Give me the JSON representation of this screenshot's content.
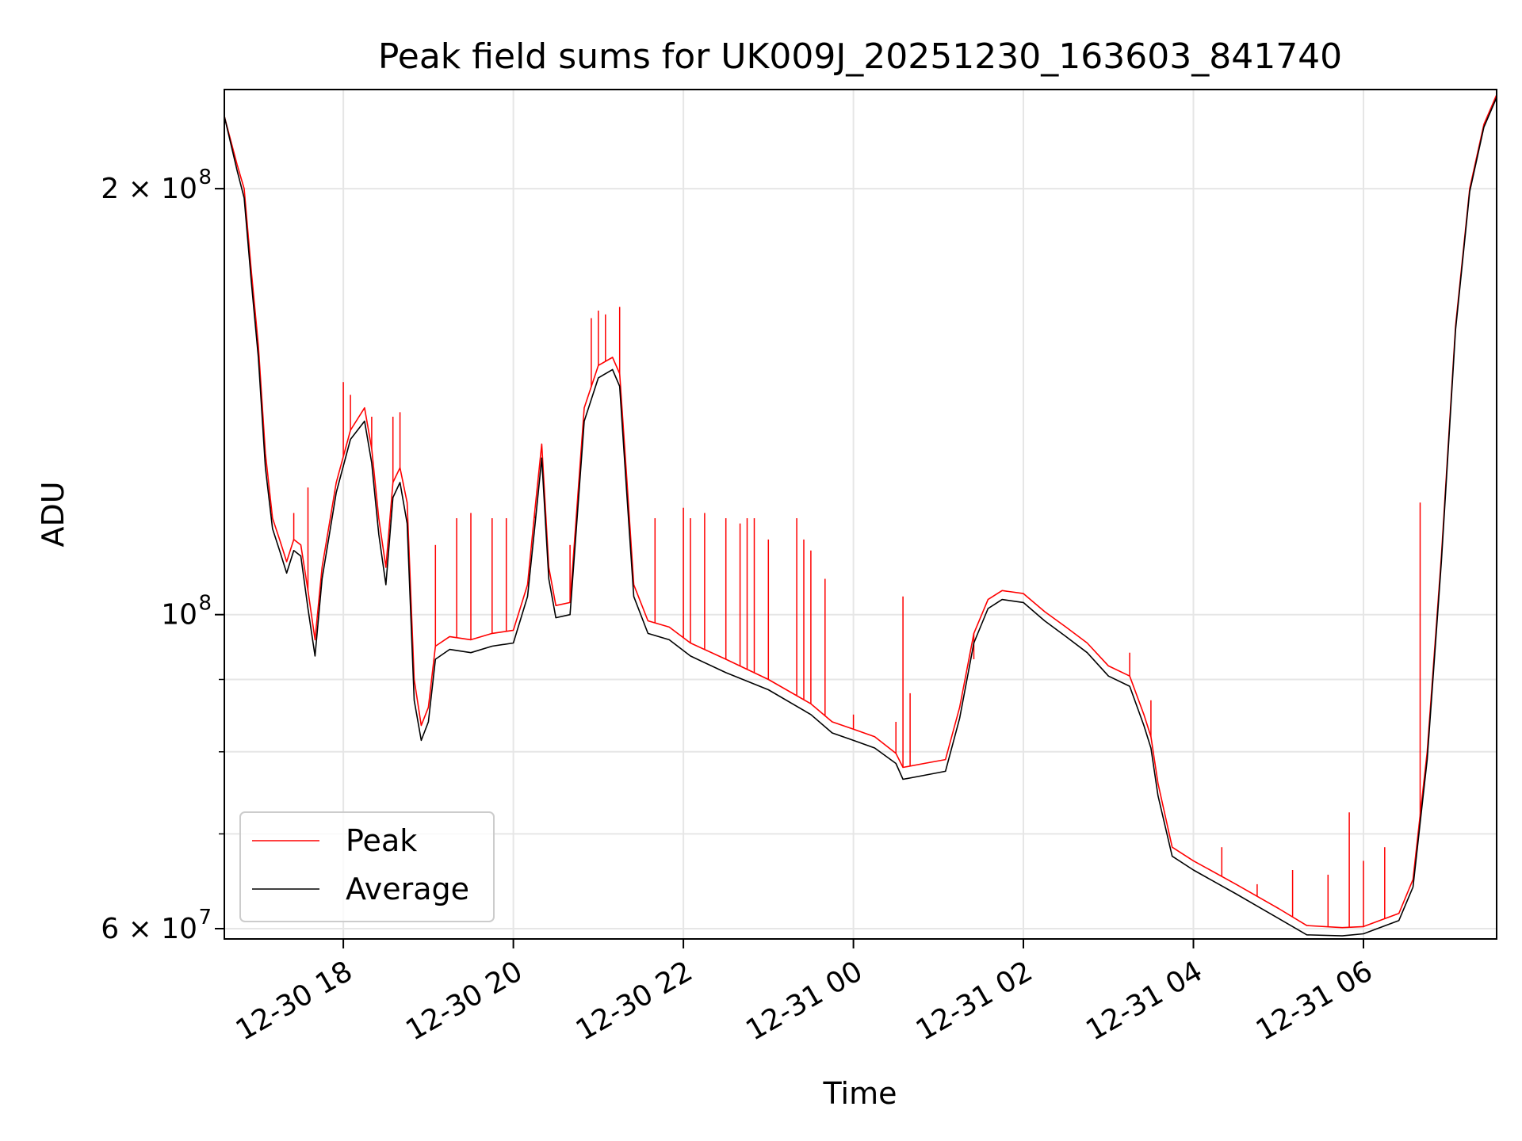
{
  "chart_data": {
    "type": "line",
    "title": "Peak field sums for UK009J_20251230_163603_841740",
    "xlabel": "Time",
    "ylabel": "ADU",
    "yscale": "log",
    "grid": true,
    "legend_placement": "lower-left",
    "x_range": [
      "12-30 16:36",
      "12-31 07:34"
    ],
    "ylim": [
      59000000,
      235000000
    ],
    "x_ticks": [
      "12-30 18",
      "12-30 20",
      "12-30 22",
      "12-31 00",
      "12-31 02",
      "12-31 04",
      "12-31 06"
    ],
    "y_ticks": [
      {
        "value": 60000000,
        "base": "6 × 10",
        "exp": "7"
      },
      {
        "value": 100000000,
        "base": "10",
        "exp": "8"
      },
      {
        "value": 200000000,
        "base": "2 × 10",
        "exp": "8"
      }
    ],
    "y_minor_ticks": [
      70000000,
      80000000,
      90000000
    ],
    "series": [
      {
        "name": "Peak",
        "color": "#ff0000",
        "points": [
          [
            "12-30 16:36",
            225000000
          ],
          [
            "12-30 16:45",
            208000000
          ],
          [
            "12-30 16:50",
            200000000
          ],
          [
            "12-30 16:55",
            175000000
          ],
          [
            "12-30 17:00",
            155000000
          ],
          [
            "12-30 17:05",
            130000000
          ],
          [
            "12-30 17:10",
            117000000
          ],
          [
            "12-30 17:15",
            113000000
          ],
          [
            "12-30 17:20",
            109000000
          ],
          [
            "12-30 17:25",
            113000000
          ],
          [
            "12-30 17:30",
            112000000
          ],
          [
            "12-30 17:35",
            104000000
          ],
          [
            "12-30 17:40",
            96000000
          ],
          [
            "12-30 17:45",
            108000000
          ],
          [
            "12-30 17:55",
            124000000
          ],
          [
            "12-30 18:05",
            135000000
          ],
          [
            "12-30 18:15",
            140000000
          ],
          [
            "12-30 18:20",
            131000000
          ],
          [
            "12-30 18:25",
            117000000
          ],
          [
            "12-30 18:30",
            108000000
          ],
          [
            "12-30 18:35",
            124000000
          ],
          [
            "12-30 18:40",
            127000000
          ],
          [
            "12-30 18:45",
            120000000
          ],
          [
            "12-30 18:50",
            90000000
          ],
          [
            "12-30 18:55",
            83500000
          ],
          [
            "12-30 19:00",
            86000000
          ],
          [
            "12-30 19:05",
            95000000
          ],
          [
            "12-30 19:15",
            96500000
          ],
          [
            "12-30 19:30",
            96000000
          ],
          [
            "12-30 19:45",
            97000000
          ],
          [
            "12-30 20:00",
            97500000
          ],
          [
            "12-30 20:10",
            105000000
          ],
          [
            "12-30 20:15",
            118000000
          ],
          [
            "12-30 20:20",
            132000000
          ],
          [
            "12-30 20:25",
            108000000
          ],
          [
            "12-30 20:30",
            101500000
          ],
          [
            "12-30 20:40",
            102000000
          ],
          [
            "12-30 20:50",
            140000000
          ],
          [
            "12-30 21:00",
            150000000
          ],
          [
            "12-30 21:10",
            152000000
          ],
          [
            "12-30 21:15",
            148000000
          ],
          [
            "12-30 21:20",
            125000000
          ],
          [
            "12-30 21:25",
            105000000
          ],
          [
            "12-30 21:35",
            99000000
          ],
          [
            "12-30 21:50",
            98000000
          ],
          [
            "12-30 22:05",
            95500000
          ],
          [
            "12-30 22:30",
            93000000
          ],
          [
            "12-30 23:00",
            90000000
          ],
          [
            "12-30 23:30",
            86500000
          ],
          [
            "12-30 23:45",
            84000000
          ],
          [
            "12-31 00:00",
            83000000
          ],
          [
            "12-31 00:15",
            82000000
          ],
          [
            "12-31 00:30",
            79800000
          ],
          [
            "12-31 00:35",
            78000000
          ],
          [
            "12-31 00:50",
            78500000
          ],
          [
            "12-31 01:05",
            79000000
          ],
          [
            "12-31 01:15",
            86000000
          ],
          [
            "12-31 01:25",
            97000000
          ],
          [
            "12-31 01:35",
            102500000
          ],
          [
            "12-31 01:45",
            104000000
          ],
          [
            "12-31 02:00",
            103500000
          ],
          [
            "12-31 02:15",
            100500000
          ],
          [
            "12-31 02:30",
            98000000
          ],
          [
            "12-31 02:45",
            95500000
          ],
          [
            "12-31 03:00",
            92000000
          ],
          [
            "12-31 03:15",
            90500000
          ],
          [
            "12-31 03:25",
            85000000
          ],
          [
            "12-31 03:30",
            82000000
          ],
          [
            "12-31 03:35",
            76000000
          ],
          [
            "12-31 03:45",
            68500000
          ],
          [
            "12-31 04:00",
            67000000
          ],
          [
            "12-31 04:30",
            64500000
          ],
          [
            "12-31 05:00",
            62000000
          ],
          [
            "12-31 05:20",
            60300000
          ],
          [
            "12-31 05:45",
            60100000
          ],
          [
            "12-31 06:00",
            60200000
          ],
          [
            "12-31 06:25",
            61500000
          ],
          [
            "12-31 06:35",
            65000000
          ],
          [
            "12-31 06:45",
            80000000
          ],
          [
            "12-31 06:55",
            110000000
          ],
          [
            "12-31 07:05",
            160000000
          ],
          [
            "12-31 07:15",
            200000000
          ],
          [
            "12-31 07:25",
            222000000
          ],
          [
            "12-31 07:34",
            233000000
          ]
        ]
      },
      {
        "name": "Average",
        "color": "#000000",
        "points": [
          [
            "12-30 16:36",
            225000000
          ],
          [
            "12-30 16:45",
            206000000
          ],
          [
            "12-30 16:50",
            197000000
          ],
          [
            "12-30 16:55",
            172000000
          ],
          [
            "12-30 17:00",
            152000000
          ],
          [
            "12-30 17:05",
            127000000
          ],
          [
            "12-30 17:10",
            115000000
          ],
          [
            "12-30 17:15",
            111000000
          ],
          [
            "12-30 17:20",
            107000000
          ],
          [
            "12-30 17:25",
            111000000
          ],
          [
            "12-30 17:30",
            110000000
          ],
          [
            "12-30 17:35",
            101000000
          ],
          [
            "12-30 17:40",
            93500000
          ],
          [
            "12-30 17:45",
            106000000
          ],
          [
            "12-30 17:55",
            122000000
          ],
          [
            "12-30 18:05",
            133000000
          ],
          [
            "12-30 18:15",
            137000000
          ],
          [
            "12-30 18:20",
            128000000
          ],
          [
            "12-30 18:25",
            114000000
          ],
          [
            "12-30 18:30",
            105000000
          ],
          [
            "12-30 18:35",
            121000000
          ],
          [
            "12-30 18:40",
            124000000
          ],
          [
            "12-30 18:45",
            116000000
          ],
          [
            "12-30 18:50",
            87000000
          ],
          [
            "12-30 18:55",
            81500000
          ],
          [
            "12-30 19:00",
            84000000
          ],
          [
            "12-30 19:05",
            93000000
          ],
          [
            "12-30 19:15",
            94500000
          ],
          [
            "12-30 19:30",
            94000000
          ],
          [
            "12-30 19:45",
            95000000
          ],
          [
            "12-30 20:00",
            95500000
          ],
          [
            "12-30 20:10",
            103000000
          ],
          [
            "12-30 20:15",
            115000000
          ],
          [
            "12-30 20:20",
            129000000
          ],
          [
            "12-30 20:25",
            106000000
          ],
          [
            "12-30 20:30",
            99500000
          ],
          [
            "12-30 20:40",
            100000000
          ],
          [
            "12-30 20:50",
            137000000
          ],
          [
            "12-30 21:00",
            147000000
          ],
          [
            "12-30 21:10",
            149000000
          ],
          [
            "12-30 21:15",
            145000000
          ],
          [
            "12-30 21:20",
            122000000
          ],
          [
            "12-30 21:25",
            103000000
          ],
          [
            "12-30 21:35",
            97000000
          ],
          [
            "12-30 21:50",
            96000000
          ],
          [
            "12-30 22:05",
            93500000
          ],
          [
            "12-30 22:30",
            91000000
          ],
          [
            "12-30 23:00",
            88500000
          ],
          [
            "12-30 23:30",
            85000000
          ],
          [
            "12-30 23:45",
            82500000
          ],
          [
            "12-31 00:00",
            81500000
          ],
          [
            "12-31 00:15",
            80500000
          ],
          [
            "12-31 00:30",
            78500000
          ],
          [
            "12-31 00:35",
            76500000
          ],
          [
            "12-31 00:50",
            77000000
          ],
          [
            "12-31 01:05",
            77500000
          ],
          [
            "12-31 01:15",
            84500000
          ],
          [
            "12-31 01:25",
            95500000
          ],
          [
            "12-31 01:35",
            101000000
          ],
          [
            "12-31 01:45",
            102500000
          ],
          [
            "12-31 02:00",
            102000000
          ],
          [
            "12-31 02:15",
            99000000
          ],
          [
            "12-31 02:30",
            96500000
          ],
          [
            "12-31 02:45",
            94000000
          ],
          [
            "12-31 03:00",
            90500000
          ],
          [
            "12-31 03:15",
            89000000
          ],
          [
            "12-31 03:25",
            83500000
          ],
          [
            "12-31 03:30",
            80500000
          ],
          [
            "12-31 03:35",
            74500000
          ],
          [
            "12-31 03:45",
            67500000
          ],
          [
            "12-31 04:00",
            66000000
          ],
          [
            "12-31 04:30",
            63500000
          ],
          [
            "12-31 05:00",
            61000000
          ],
          [
            "12-31 05:20",
            59400000
          ],
          [
            "12-31 05:45",
            59300000
          ],
          [
            "12-31 06:00",
            59500000
          ],
          [
            "12-31 06:25",
            60800000
          ],
          [
            "12-31 06:35",
            64200000
          ],
          [
            "12-31 06:45",
            79000000
          ],
          [
            "12-31 06:55",
            109000000
          ],
          [
            "12-31 07:05",
            159000000
          ],
          [
            "12-31 07:15",
            199000000
          ],
          [
            "12-31 07:25",
            221000000
          ],
          [
            "12-31 07:34",
            232000000
          ]
        ]
      }
    ],
    "peak_spikes": [
      [
        "12-30 17:25",
        118000000
      ],
      [
        "12-30 17:35",
        123000000
      ],
      [
        "12-30 18:00",
        146000000
      ],
      [
        "12-30 18:05",
        143000000
      ],
      [
        "12-30 18:20",
        138000000
      ],
      [
        "12-30 18:35",
        138000000
      ],
      [
        "12-30 18:40",
        139000000
      ],
      [
        "12-30 19:05",
        112000000
      ],
      [
        "12-30 19:20",
        117000000
      ],
      [
        "12-30 19:30",
        118000000
      ],
      [
        "12-30 19:45",
        117000000
      ],
      [
        "12-30 19:55",
        117000000
      ],
      [
        "12-30 20:15",
        117000000
      ],
      [
        "12-30 20:40",
        112000000
      ],
      [
        "12-30 20:55",
        162000000
      ],
      [
        "12-30 21:00",
        164000000
      ],
      [
        "12-30 21:05",
        163000000
      ],
      [
        "12-30 21:15",
        165000000
      ],
      [
        "12-30 21:40",
        117000000
      ],
      [
        "12-30 22:00",
        119000000
      ],
      [
        "12-30 22:05",
        117000000
      ],
      [
        "12-30 22:15",
        118000000
      ],
      [
        "12-30 22:30",
        117000000
      ],
      [
        "12-30 22:40",
        116000000
      ],
      [
        "12-30 22:45",
        117000000
      ],
      [
        "12-30 22:50",
        117000000
      ],
      [
        "12-30 23:00",
        113000000
      ],
      [
        "12-30 23:20",
        117000000
      ],
      [
        "12-30 23:25",
        113000000
      ],
      [
        "12-30 23:30",
        111000000
      ],
      [
        "12-30 23:40",
        106000000
      ],
      [
        "12-31 00:00",
        85000000
      ],
      [
        "12-31 00:30",
        84000000
      ],
      [
        "12-31 00:35",
        103000000
      ],
      [
        "12-31 00:40",
        88000000
      ],
      [
        "12-31 01:25",
        93000000
      ],
      [
        "12-31 03:15",
        94000000
      ],
      [
        "12-31 03:30",
        87000000
      ],
      [
        "12-31 04:20",
        68500000
      ],
      [
        "12-31 04:45",
        64500000
      ],
      [
        "12-31 05:10",
        66000000
      ],
      [
        "12-31 05:35",
        65500000
      ],
      [
        "12-31 05:50",
        72500000
      ],
      [
        "12-31 06:00",
        67000000
      ],
      [
        "12-31 06:15",
        68500000
      ],
      [
        "12-31 06:40",
        120000000
      ]
    ]
  }
}
